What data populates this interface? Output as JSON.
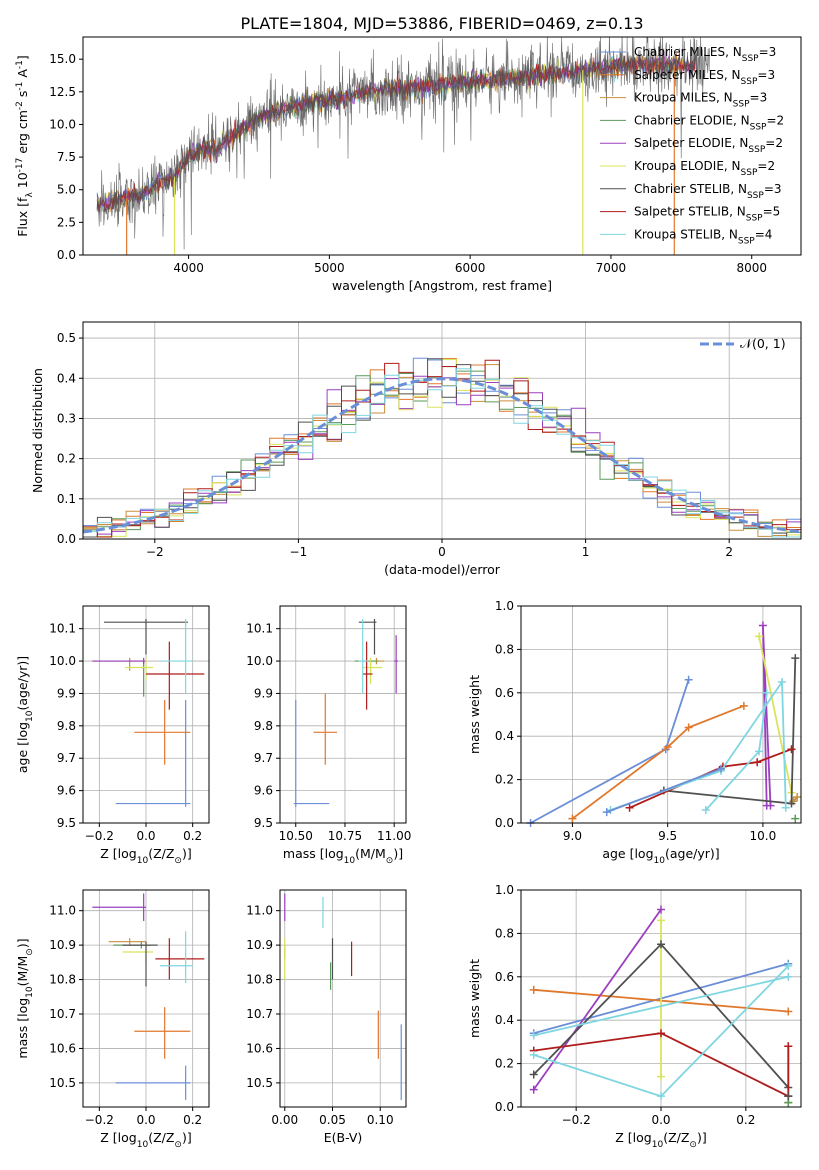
{
  "figure_title": "PLATE=1804, MJD=53886, FIBERID=0469, z=0.13",
  "models": [
    {
      "label": "Chabrier MILES, N$_{SSP}$=3",
      "base": "Chabrier MILES, N",
      "sub": "SSP",
      "tail": "=3",
      "color": "#6a8fd8"
    },
    {
      "label": "Salpeter MILES, N$_{SSP}$=3",
      "base": "Salpeter MILES, N",
      "sub": "SSP",
      "tail": "=3",
      "color": "#e0782c"
    },
    {
      "label": "Kroupa MILES, N$_{SSP}$=3",
      "base": "Kroupa MILES, N",
      "sub": "SSP",
      "tail": "=3",
      "color": "#c98f3a"
    },
    {
      "label": "Chabrier ELODIE, N$_{SSP}$=2",
      "base": "Chabrier ELODIE, N",
      "sub": "SSP",
      "tail": "=2",
      "color": "#5a9a5a"
    },
    {
      "label": "Salpeter ELODIE, N$_{SSP}$=2",
      "base": "Salpeter ELODIE, N",
      "sub": "SSP",
      "tail": "=2",
      "color": "#9b3fbf"
    },
    {
      "label": "Kroupa ELODIE, N$_{SSP}$=2",
      "base": "Kroupa ELODIE, N",
      "sub": "SSP",
      "tail": "=2",
      "color": "#d9e45a"
    },
    {
      "label": "Chabrier STELIB, N$_{SSP}$=3",
      "base": "Chabrier STELIB, N",
      "sub": "SSP",
      "tail": "=3",
      "color": "#505050"
    },
    {
      "label": "Salpeter STELIB, N$_{SSP}$=5",
      "base": "Salpeter STELIB, N",
      "sub": "SSP",
      "tail": "=5",
      "color": "#b01c1c"
    },
    {
      "label": "Kroupa STELIB, N$_{SSP}$=4",
      "base": "Kroupa STELIB, N",
      "sub": "SSP",
      "tail": "=4",
      "color": "#7fd6e0"
    }
  ],
  "chart_data": [
    {
      "id": "spectrum",
      "type": "line",
      "xlabel": "wavelength [Angstrom, rest frame]",
      "ylabel": "Flux [f$_\\lambda$ 10$^{-17}$ erg cm$^{-2}$ s$^{-1}$ A$^{-1}$]",
      "xlim": [
        3250,
        8350
      ],
      "ylim": [
        0,
        16.7
      ],
      "xticks": [
        4000,
        5000,
        6000,
        7000,
        8000
      ],
      "yticks": [
        0.0,
        2.5,
        5.0,
        7.5,
        10.0,
        12.5,
        15.0
      ],
      "spectrum_trend": {
        "x": [
          3350,
          3500,
          3650,
          3800,
          3900,
          4000,
          4100,
          4200,
          4300,
          4500,
          4700,
          4900,
          5100,
          5300,
          5500,
          5700,
          5900,
          6100,
          6300,
          6500,
          6700,
          6900,
          7100,
          7300,
          7500,
          7700
        ],
        "y": [
          3.8,
          4.2,
          4.6,
          5.5,
          6.0,
          7.5,
          8.3,
          8.0,
          9.0,
          10.5,
          11.3,
          11.8,
          12.0,
          12.6,
          12.8,
          12.9,
          13.2,
          13.4,
          13.6,
          13.8,
          14.0,
          14.3,
          14.5,
          14.6,
          14.5,
          14.6
        ]
      },
      "legend_position": "upper right"
    },
    {
      "id": "residuals",
      "type": "histogram",
      "xlabel": "(data-model)/error",
      "ylabel": "Normed distribution",
      "xlim": [
        -2.5,
        2.5
      ],
      "ylim": [
        0,
        0.54
      ],
      "xticks": [
        -2,
        -1,
        0,
        1,
        2
      ],
      "yticks": [
        0.0,
        0.1,
        0.2,
        0.3,
        0.4,
        0.5
      ],
      "grid": true,
      "reference_curve": {
        "name": "$\\mathcal{N}(0,1)$",
        "label": "𝒩(0, 1)",
        "color": "#6a8fd8"
      },
      "legend_position": "upper right",
      "bin_width": 0.1
    },
    {
      "id": "age_vs_Z",
      "type": "errorbar",
      "xlabel": "Z [log$_{10}$(Z/Z$_\\odot$)]",
      "ylabel": "age  [log$_{10}$(age/yr)]",
      "xlim": [
        -0.27,
        0.27
      ],
      "ylim": [
        9.5,
        10.17
      ],
      "xticks": [
        -0.2,
        0.0,
        0.2
      ],
      "yticks": [
        9.5,
        9.6,
        9.7,
        9.8,
        9.9,
        10.0,
        10.1
      ],
      "grid": true,
      "points": [
        {
          "x": 0.17,
          "y": 9.56,
          "xerr": [
            0.3,
            0.02
          ],
          "yerr": [
            0.01,
            0.32
          ]
        },
        {
          "x": 0.08,
          "y": 9.78,
          "xerr": [
            0.13,
            0.11
          ],
          "yerr": [
            0.1,
            0.1
          ]
        },
        {
          "x": -0.07,
          "y": 10.0,
          "xerr": [
            0.16,
            0.07
          ],
          "yerr": [
            0.03,
            0.01
          ]
        },
        {
          "x": -0.01,
          "y": 9.98,
          "xerr": [
            0.01,
            0.01
          ],
          "yerr": [
            0.09,
            0.02
          ]
        },
        {
          "x": -0.01,
          "y": 10.0,
          "xerr": [
            0.22,
            0.01
          ],
          "yerr": [
            0.01,
            0.01
          ]
        },
        {
          "x": 0.0,
          "y": 9.98,
          "xerr": [
            0.09,
            0.03
          ],
          "yerr": [
            0.04,
            0.03
          ]
        },
        {
          "x": 0.0,
          "y": 10.12,
          "xerr": [
            0.18,
            0.18
          ],
          "yerr": [
            0.1,
            0.01
          ]
        },
        {
          "x": 0.1,
          "y": 9.96,
          "xerr": [
            0.1,
            0.15
          ],
          "yerr": [
            0.11,
            0.1
          ]
        },
        {
          "x": 0.17,
          "y": 10.0,
          "xerr": [
            0.1,
            0.03
          ],
          "yerr": [
            0.1,
            0.13
          ]
        }
      ]
    },
    {
      "id": "age_vs_mass",
      "type": "errorbar",
      "xlabel": "mass [log$_{10}$(M/M$_\\odot$)]",
      "ylabel": "",
      "xlim": [
        10.42,
        11.06
      ],
      "ylim": [
        9.5,
        10.17
      ],
      "xticks": [
        10.5,
        10.75,
        11.0
      ],
      "yticks": [
        9.5,
        9.6,
        9.7,
        9.8,
        9.9,
        10.0,
        10.1
      ],
      "grid": true,
      "points": [
        {
          "x": 10.5,
          "y": 9.56,
          "xerr": [
            0.01,
            0.17
          ],
          "yerr": [
            0.01,
            0.32
          ]
        },
        {
          "x": 10.65,
          "y": 9.78,
          "xerr": [
            0.06,
            0.06
          ],
          "yerr": [
            0.1,
            0.12
          ]
        },
        {
          "x": 10.91,
          "y": 10.0,
          "xerr": [
            0.07,
            0.04
          ],
          "yerr": [
            0.01,
            0.01
          ]
        },
        {
          "x": 10.88,
          "y": 10.0,
          "xerr": [
            0.08,
            0.04
          ],
          "yerr": [
            0.04,
            0.01
          ]
        },
        {
          "x": 11.01,
          "y": 10.0,
          "xerr": [
            0.01,
            0.01
          ],
          "yerr": [
            0.1,
            0.08
          ]
        },
        {
          "x": 10.88,
          "y": 9.98,
          "xerr": [
            0.04,
            0.06
          ],
          "yerr": [
            0.05,
            0.03
          ]
        },
        {
          "x": 10.9,
          "y": 10.12,
          "xerr": [
            0.08,
            0.01
          ],
          "yerr": [
            0.1,
            0.01
          ]
        },
        {
          "x": 10.86,
          "y": 9.96,
          "xerr": [
            0.02,
            0.03
          ],
          "yerr": [
            0.11,
            0.1
          ]
        },
        {
          "x": 10.84,
          "y": 10.0,
          "xerr": [
            0.02,
            0.03
          ],
          "yerr": [
            0.1,
            0.13
          ]
        }
      ]
    },
    {
      "id": "weight_vs_age",
      "type": "line",
      "xlabel": "age  [log$_{10}$(age/yr)]",
      "ylabel": "mass weight",
      "xlim": [
        8.73,
        10.2
      ],
      "ylim": [
        0,
        1.0
      ],
      "xticks": [
        9.0,
        9.5,
        10.0
      ],
      "yticks": [
        0.0,
        0.2,
        0.4,
        0.6,
        0.8,
        1.0
      ],
      "grid": true,
      "series": [
        {
          "x": [
            8.78,
            9.49,
            9.61
          ],
          "y": [
            0.0,
            0.34,
            0.66
          ]
        },
        {
          "x": [
            9.0,
            9.5,
            9.61,
            9.9
          ],
          "y": [
            0.02,
            0.35,
            0.44,
            0.54
          ]
        },
        {
          "x": [
            10.16,
            10.18
          ],
          "y": [
            0.1,
            0.12
          ]
        },
        {
          "x": [
            10.17
          ],
          "y": [
            0.02
          ]
        },
        {
          "x": [
            10.02,
            10.0,
            10.04
          ],
          "y": [
            0.08,
            0.91,
            0.08
          ]
        },
        {
          "x": [
            9.98,
            10.15
          ],
          "y": [
            0.86,
            0.14
          ]
        },
        {
          "x": [
            9.48,
            10.15,
            10.17
          ],
          "y": [
            0.15,
            0.09,
            0.76
          ]
        },
        {
          "x": [
            9.3,
            9.79,
            9.97,
            10.15
          ],
          "y": [
            0.07,
            0.26,
            0.28,
            0.34
          ]
        },
        {
          "x": [
            9.2,
            9.78,
            10.1,
            10.12
          ],
          "y": [
            0.06,
            0.24,
            0.65,
            0.07
          ]
        }
      ],
      "extra_series": [
        {
          "model": 0,
          "x": [
            9.18,
            9.78
          ],
          "y": [
            0.05,
            0.25
          ]
        },
        {
          "model": 8,
          "x": [
            9.7,
            9.98,
            10.02
          ],
          "y": [
            0.06,
            0.33,
            0.6
          ]
        }
      ]
    },
    {
      "id": "mass_vs_Z",
      "type": "errorbar",
      "xlabel": "Z [log$_{10}$(Z/Z$_\\odot$)]",
      "ylabel": "mass [log$_{10}$(M/M$_\\odot$)]",
      "xlim": [
        -0.27,
        0.27
      ],
      "ylim": [
        10.43,
        11.06
      ],
      "xticks": [
        -0.2,
        0.0,
        0.2
      ],
      "yticks": [
        10.5,
        10.6,
        10.7,
        10.8,
        10.9,
        11.0
      ],
      "grid": true,
      "points": [
        {
          "x": 0.17,
          "y": 10.5,
          "xerr": [
            0.3,
            0.02
          ],
          "yerr": [
            0.05,
            0.05
          ]
        },
        {
          "x": 0.08,
          "y": 10.65,
          "xerr": [
            0.13,
            0.11
          ],
          "yerr": [
            0.08,
            0.07
          ]
        },
        {
          "x": -0.07,
          "y": 10.91,
          "xerr": [
            0.09,
            0.07
          ],
          "yerr": [
            0.01,
            0.01
          ]
        },
        {
          "x": -0.02,
          "y": 10.9,
          "xerr": [
            0.12,
            0.04
          ],
          "yerr": [
            0.01,
            0.01
          ]
        },
        {
          "x": -0.01,
          "y": 11.01,
          "xerr": [
            0.22,
            0.01
          ],
          "yerr": [
            0.04,
            0.04
          ]
        },
        {
          "x": 0.0,
          "y": 10.88,
          "xerr": [
            0.1,
            0.03
          ],
          "yerr": [
            0.03,
            0.03
          ]
        },
        {
          "x": 0.0,
          "y": 10.9,
          "xerr": [
            0.1,
            0.05
          ],
          "yerr": [
            0.12,
            0.01
          ]
        },
        {
          "x": 0.1,
          "y": 10.86,
          "xerr": [
            0.06,
            0.15
          ],
          "yerr": [
            0.06,
            0.06
          ]
        },
        {
          "x": 0.17,
          "y": 10.84,
          "xerr": [
            0.11,
            0.03
          ],
          "yerr": [
            0.05,
            0.1
          ]
        }
      ]
    },
    {
      "id": "mass_vs_EBV",
      "type": "errorbar",
      "xlabel": "E(B-V)",
      "ylabel": "",
      "xlim": [
        -0.005,
        0.127
      ],
      "ylim": [
        10.43,
        11.06
      ],
      "xticks": [
        0.0,
        0.05,
        0.1
      ],
      "yticks": [
        10.5,
        10.6,
        10.7,
        10.8,
        10.9,
        11.0
      ],
      "grid": true,
      "points": [
        {
          "x": 0.122,
          "y": 10.55,
          "xerr": [
            0,
            0
          ],
          "yerr": [
            0.1,
            0.12
          ]
        },
        {
          "x": 0.098,
          "y": 10.64,
          "xerr": [
            0,
            0
          ],
          "yerr": [
            0.07,
            0.07
          ]
        },
        {
          "x": 0.0,
          "y": 10.88,
          "xerr": [
            0,
            0
          ],
          "yerr": [
            0.02,
            0.02
          ]
        },
        {
          "x": 0.048,
          "y": 10.81,
          "xerr": [
            0,
            0
          ],
          "yerr": [
            0.04,
            0.04
          ]
        },
        {
          "x": 0.0,
          "y": 11.01,
          "xerr": [
            0,
            0
          ],
          "yerr": [
            0.04,
            0.04
          ]
        },
        {
          "x": 0.0,
          "y": 10.86,
          "xerr": [
            0,
            0
          ],
          "yerr": [
            0.06,
            0.06
          ]
        },
        {
          "x": 0.05,
          "y": 10.86,
          "xerr": [
            0,
            0
          ],
          "yerr": [
            0.06,
            0.06
          ]
        },
        {
          "x": 0.07,
          "y": 10.86,
          "xerr": [
            0,
            0
          ],
          "yerr": [
            0.05,
            0.05
          ]
        },
        {
          "x": 0.04,
          "y": 11.0,
          "xerr": [
            0,
            0
          ],
          "yerr": [
            0.05,
            0.04
          ]
        }
      ]
    },
    {
      "id": "weight_vs_Z",
      "type": "line",
      "xlabel": "Z [log$_{10}$(Z/Z$_\\odot$)]",
      "ylabel": "mass weight",
      "xlim": [
        -0.33,
        0.33
      ],
      "ylim": [
        0,
        1.0
      ],
      "xticks": [
        -0.2,
        0.0,
        0.2
      ],
      "yticks": [
        0.0,
        0.2,
        0.4,
        0.6,
        0.8,
        1.0
      ],
      "grid": true,
      "series": [
        {
          "x": [
            -0.3,
            0.3
          ],
          "y": [
            0.34,
            0.66
          ]
        },
        {
          "x": [
            -0.3,
            0.3
          ],
          "y": [
            0.54,
            0.44
          ]
        },
        {
          "x": [
            0.3,
            0.3
          ],
          "y": [
            0.28,
            0.02
          ]
        },
        {
          "x": [
            0.3
          ],
          "y": [
            0.02
          ]
        },
        {
          "x": [
            -0.3,
            0.0
          ],
          "y": [
            0.08,
            0.91
          ]
        },
        {
          "x": [
            0.0,
            0.0
          ],
          "y": [
            0.86,
            0.14
          ]
        },
        {
          "x": [
            -0.3,
            0.0,
            0.3
          ],
          "y": [
            0.15,
            0.75,
            0.09
          ]
        },
        {
          "x": [
            -0.3,
            0.0,
            0.3,
            0.3
          ],
          "y": [
            0.26,
            0.34,
            0.05,
            0.28
          ]
        },
        {
          "x": [
            -0.3,
            0.0,
            0.3
          ],
          "y": [
            0.24,
            0.05,
            0.65
          ]
        }
      ],
      "extra_series": [
        {
          "model": 8,
          "x": [
            -0.3,
            0.3
          ],
          "y": [
            0.33,
            0.6
          ]
        },
        {
          "model": 6,
          "x": [
            0.3
          ],
          "y": [
            0.05
          ]
        }
      ]
    }
  ]
}
